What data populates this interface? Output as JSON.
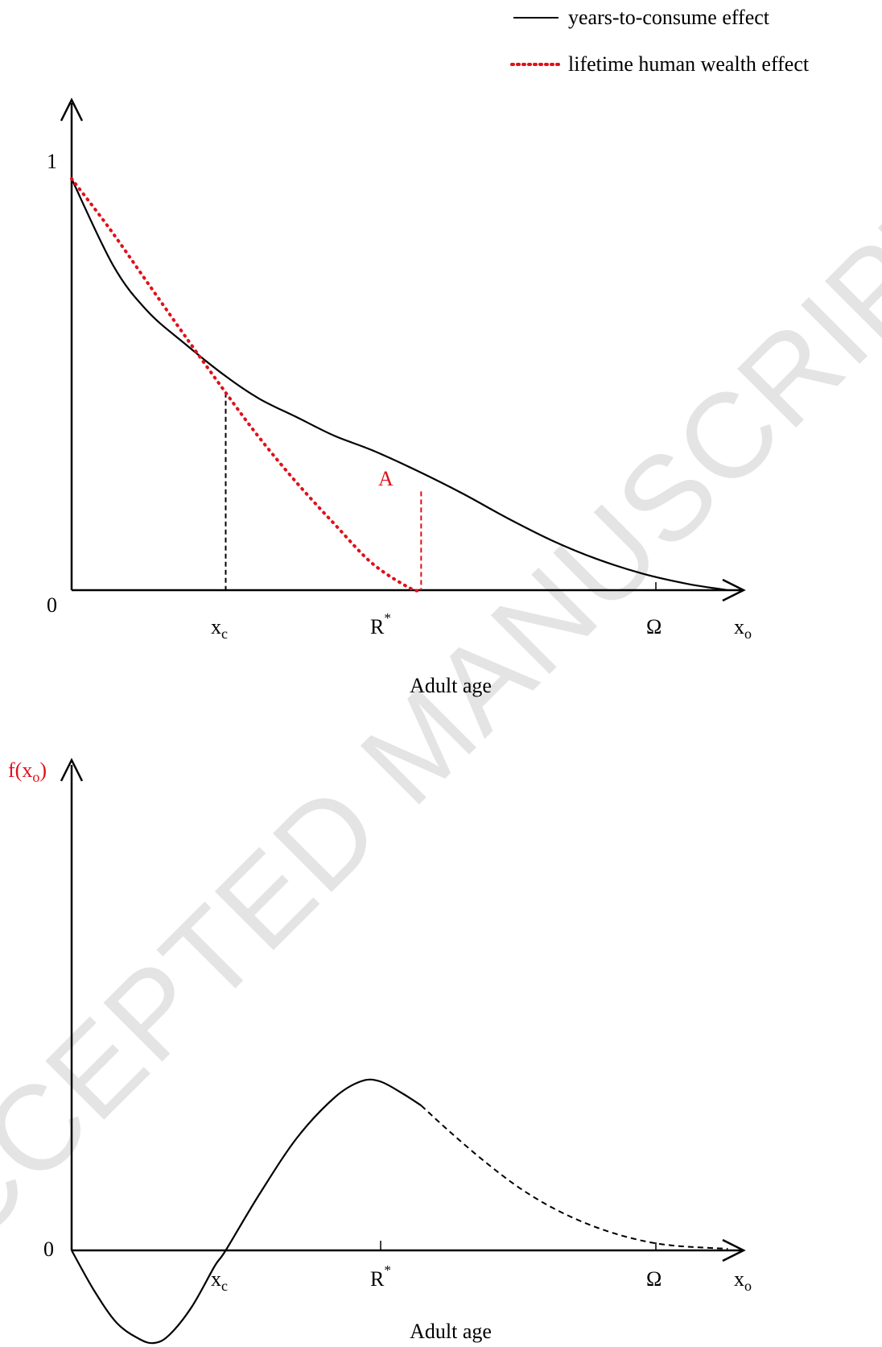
{
  "watermark": "ACCEPTED MANUSCRIPT",
  "legend": {
    "solid_label": "years-to-consume effect",
    "dotted_label": "lifetime human wealth effect"
  },
  "chart_data": [
    {
      "type": "line",
      "xlabel": "Adult age",
      "axis_end_label": {
        "base": "x",
        "sub": "o"
      },
      "y_ticks": [
        "1",
        "0"
      ],
      "x_ticks": [
        {
          "base": "x",
          "sub": "c",
          "sup": ""
        },
        {
          "base": "R",
          "sub": "",
          "sup": "*"
        },
        {
          "base": "Ω",
          "sub": "",
          "sup": ""
        }
      ],
      "point_label": "A",
      "series": [
        {
          "name": "years-to-consume effect",
          "style": "solid",
          "color": "#000000",
          "points": [
            [
              0,
              1.0
            ],
            [
              0.055,
              0.79
            ],
            [
              0.1,
              0.68
            ],
            [
              0.15,
              0.6
            ],
            [
              0.205,
              0.52
            ],
            [
              0.25,
              0.465
            ],
            [
              0.3,
              0.42
            ],
            [
              0.35,
              0.375
            ],
            [
              0.4,
              0.34
            ],
            [
              0.46,
              0.29
            ],
            [
              0.52,
              0.235
            ],
            [
              0.58,
              0.175
            ],
            [
              0.64,
              0.12
            ],
            [
              0.7,
              0.075
            ],
            [
              0.76,
              0.04
            ],
            [
              0.82,
              0.015
            ],
            [
              0.873,
              0.0
            ]
          ]
        },
        {
          "name": "lifetime human wealth effect",
          "style": "dotted",
          "color": "#e0101a",
          "points": [
            [
              0,
              1.0
            ],
            [
              0.05,
              0.88
            ],
            [
              0.1,
              0.75
            ],
            [
              0.15,
              0.62
            ],
            [
              0.205,
              0.48
            ],
            [
              0.25,
              0.37
            ],
            [
              0.3,
              0.26
            ],
            [
              0.35,
              0.16
            ],
            [
              0.4,
              0.065
            ],
            [
              0.45,
              0.005
            ],
            [
              0.465,
              0.0
            ]
          ]
        }
      ],
      "markers": [
        {
          "x": 0.205,
          "y": 0.48,
          "style": "dashed",
          "color": "#000000"
        },
        {
          "x": 0.465,
          "y": 0.24,
          "style": "dashed",
          "color": "#e0101a"
        }
      ],
      "xlim": [
        0,
        1.0
      ],
      "ylim": [
        0,
        1.0
      ]
    },
    {
      "type": "line",
      "xlabel": "Adult age",
      "ylabel": {
        "base": "f(x",
        "sub": "o",
        "tail": ")"
      },
      "axis_end_label": {
        "base": "x",
        "sub": "o"
      },
      "y_ticks": [
        "0"
      ],
      "x_ticks": [
        {
          "base": "x",
          "sub": "c",
          "sup": ""
        },
        {
          "base": "R",
          "sub": "",
          "sup": "*"
        },
        {
          "base": "Ω",
          "sub": "",
          "sup": ""
        }
      ],
      "series": [
        {
          "style": "solid",
          "color": "#000000",
          "points": [
            [
              0,
              0.0
            ],
            [
              0.03,
              -0.05
            ],
            [
              0.06,
              -0.09
            ],
            [
              0.09,
              -0.11
            ],
            [
              0.11,
              -0.115
            ],
            [
              0.13,
              -0.105
            ],
            [
              0.16,
              -0.07
            ],
            [
              0.19,
              -0.02
            ],
            [
              0.205,
              0.0
            ],
            [
              0.25,
              0.07
            ],
            [
              0.3,
              0.14
            ],
            [
              0.35,
              0.19
            ],
            [
              0.385,
              0.21
            ],
            [
              0.41,
              0.21
            ],
            [
              0.44,
              0.195
            ],
            [
              0.465,
              0.18
            ]
          ]
        },
        {
          "style": "dashed",
          "color": "#000000",
          "points": [
            [
              0.465,
              0.18
            ],
            [
              0.5,
              0.15
            ],
            [
              0.55,
              0.11
            ],
            [
              0.6,
              0.075
            ],
            [
              0.65,
              0.048
            ],
            [
              0.7,
              0.028
            ],
            [
              0.75,
              0.014
            ],
            [
              0.8,
              0.006
            ],
            [
              0.873,
              0.002
            ]
          ]
        }
      ],
      "xlim": [
        0,
        1.0
      ],
      "ylim": [
        -0.15,
        1.0
      ]
    }
  ]
}
